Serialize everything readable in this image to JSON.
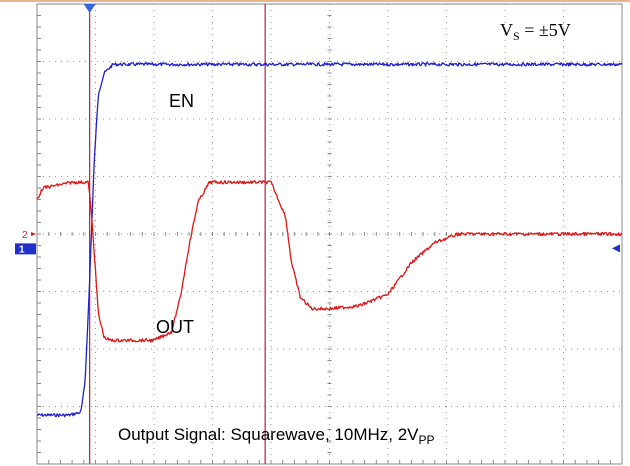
{
  "chart_data": {
    "type": "line",
    "title": "",
    "xlabel": "",
    "ylabel": "",
    "grid": true,
    "xlim": [
      0,
      10
    ],
    "ylim": [
      -4,
      4
    ],
    "x_divisions": 10,
    "y_divisions": 8,
    "annotations": {
      "supply": {
        "base": "V",
        "sub": "S",
        "rest": " = ±5V"
      },
      "caption": {
        "base": "Output Signal: Squarewave, 10MHz, 2V",
        "sub": "PP"
      }
    },
    "markers": {
      "ch2_ground": "2",
      "ch1_ground": "1",
      "cursor_x": [
        0.9,
        3.9
      ]
    },
    "series": [
      {
        "name": "EN",
        "color": "#1f1fcc",
        "x": [
          0,
          0.55,
          0.75,
          0.82,
          0.88,
          0.93,
          0.98,
          1.05,
          1.15,
          1.3,
          1.5,
          2,
          3,
          4,
          5,
          6,
          7,
          8,
          9,
          10
        ],
        "y": [
          -3.15,
          -3.15,
          -3.1,
          -2.6,
          -1.3,
          0.0,
          1.3,
          2.45,
          2.8,
          2.95,
          2.95,
          2.95,
          2.95,
          2.95,
          2.95,
          2.95,
          2.95,
          2.95,
          2.95,
          2.95
        ]
      },
      {
        "name": "OUT",
        "color": "#e01515",
        "x": [
          0,
          0.1,
          0.6,
          0.88,
          0.95,
          1.05,
          1.15,
          1.25,
          1.5,
          2.0,
          2.3,
          2.45,
          2.6,
          2.75,
          2.95,
          3.15,
          3.5,
          4.0,
          4.25,
          4.35,
          4.5,
          4.7,
          5.0,
          5.5,
          6.0,
          6.4,
          6.8,
          7.2,
          8,
          9,
          10
        ],
        "y": [
          0.6,
          0.8,
          0.9,
          0.9,
          0.1,
          -1.4,
          -1.8,
          -1.85,
          -1.85,
          -1.85,
          -1.7,
          -1.1,
          -0.2,
          0.55,
          0.9,
          0.9,
          0.9,
          0.9,
          0.3,
          -0.5,
          -1.1,
          -1.3,
          -1.3,
          -1.25,
          -1.05,
          -0.5,
          -0.15,
          0.0,
          0.0,
          0.0,
          0.0
        ]
      }
    ]
  }
}
